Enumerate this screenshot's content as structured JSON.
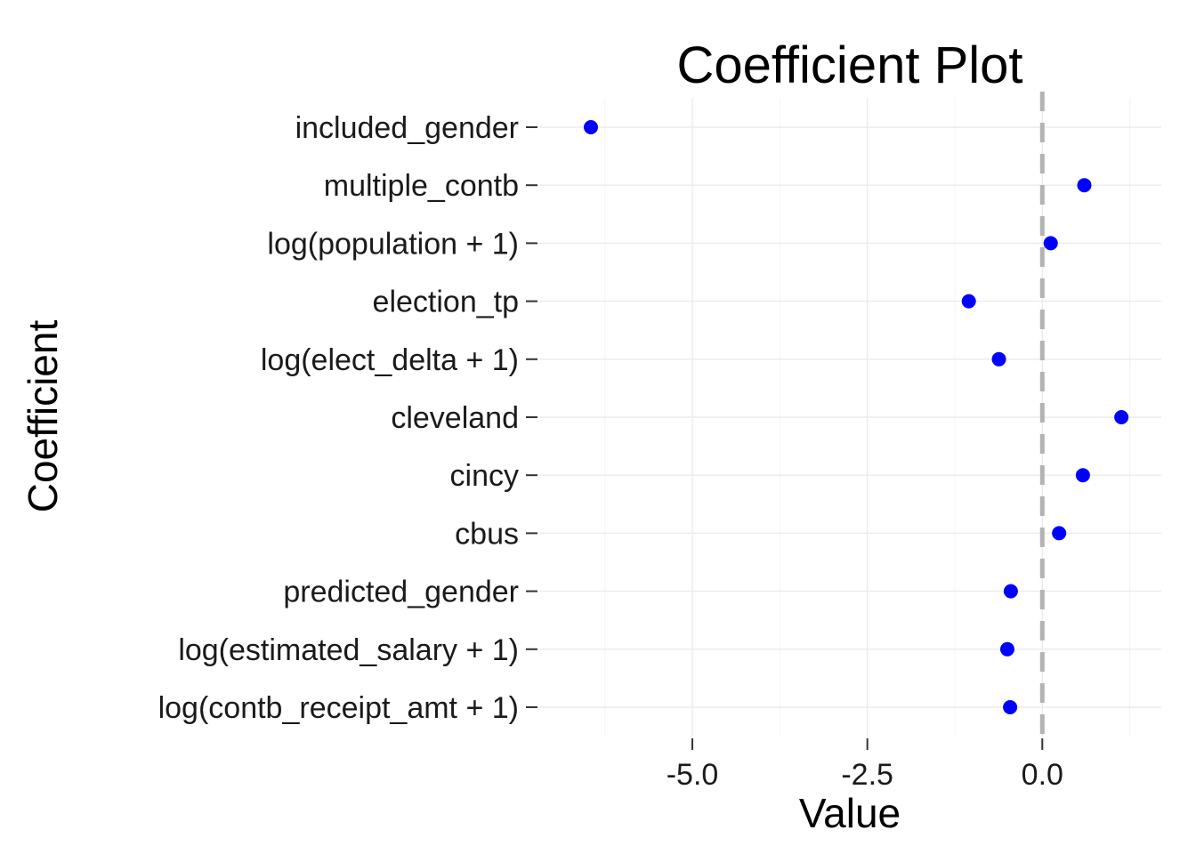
{
  "chart_data": {
    "type": "scatter",
    "title": "Coefficient Plot",
    "xlabel": "Value",
    "ylabel": "Coefficient",
    "categories": [
      "included_gender",
      "multiple_contb",
      "log(population + 1)",
      "election_tp",
      "log(elect_delta + 1)",
      "cleveland",
      "cincy",
      "cbus",
      "predicted_gender",
      "log(estimated_salary + 1)",
      "log(contb_receipt_amt + 1)"
    ],
    "values": [
      -6.45,
      0.6,
      0.12,
      -1.05,
      -0.62,
      1.13,
      0.58,
      0.24,
      -0.45,
      -0.5,
      -0.46
    ],
    "x_ticks": [
      -5.0,
      -2.5,
      0.0
    ],
    "x_tick_labels": [
      "-5.0",
      "-2.5",
      "0.0"
    ],
    "xlim": [
      -7.2,
      1.7
    ],
    "reference_line": {
      "value": 0.0,
      "style": "dashed",
      "color": "#b3b3b3"
    },
    "point_color": "#0000ff",
    "grid": true,
    "legend": "none"
  }
}
